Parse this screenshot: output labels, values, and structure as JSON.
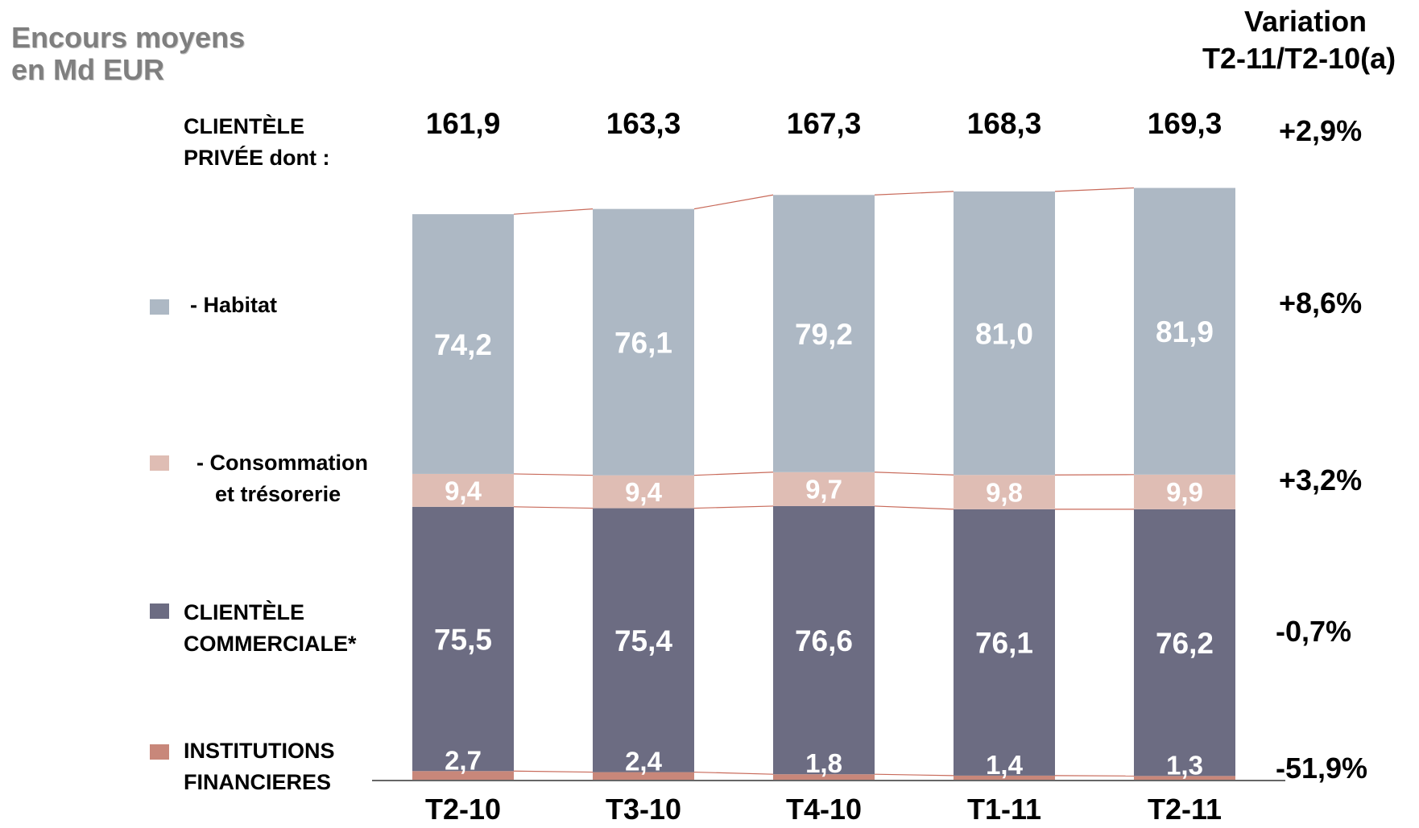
{
  "title": {
    "line1": "Encours moyens",
    "line2": "en Md EUR"
  },
  "variation_header": {
    "line1": "Variation",
    "line2": "T2-11/T2-10(a)"
  },
  "legend": [
    {
      "id": "clientele-privee",
      "line1": "CLIENTÈLE",
      "line2": "PRIVÉE dont :",
      "color": null,
      "variation": "+2,9%"
    },
    {
      "id": "habitat",
      "line1": "- Habitat",
      "line2": "",
      "color": "#adb8c4",
      "variation": "+8,6%"
    },
    {
      "id": "consommation",
      "line1": "- Consommation",
      "line2": "et trésorerie",
      "color": "#dfbdb4",
      "variation": "+3,2%"
    },
    {
      "id": "clientele-commerciale",
      "line1": "CLIENTÈLE",
      "line2": "COMMERCIALE*",
      "color": "#6c6c82",
      "variation": "-0,7%"
    },
    {
      "id": "institutions",
      "line1": "INSTITUTIONS",
      "line2": "FINANCIERES",
      "color": "#c8877a",
      "variation": "-51,9%"
    }
  ],
  "chart_data": {
    "type": "bar",
    "stacked": true,
    "categories": [
      "T2-10",
      "T3-10",
      "T4-10",
      "T1-11",
      "T2-11"
    ],
    "series": [
      {
        "name": "INSTITUTIONS FINANCIERES",
        "values": [
          2.7,
          2.4,
          1.8,
          1.4,
          1.3
        ],
        "labels": [
          "2,7",
          "2,4",
          "1,8",
          "1,4",
          "1,3"
        ],
        "color": "#c8877a"
      },
      {
        "name": "CLIENTÈLE COMMERCIALE*",
        "values": [
          75.5,
          75.4,
          76.6,
          76.1,
          76.2
        ],
        "labels": [
          "75,5",
          "75,4",
          "76,6",
          "76,1",
          "76,2"
        ],
        "color": "#6c6c82"
      },
      {
        "name": "- Consommation et trésorerie",
        "values": [
          9.4,
          9.4,
          9.7,
          9.8,
          9.9
        ],
        "labels": [
          "9,4",
          "9,4",
          "9,7",
          "9,8",
          "9,9"
        ],
        "color": "#dfbdb4"
      },
      {
        "name": "- Habitat",
        "values": [
          74.2,
          76.1,
          79.2,
          81.0,
          81.9
        ],
        "labels": [
          "74,2",
          "76,1",
          "79,2",
          "81,0",
          "81,9"
        ],
        "color": "#adb8c4"
      }
    ],
    "totals": {
      "name": "CLIENTÈLE PRIVÉE dont :",
      "values": [
        161.9,
        163.3,
        167.3,
        168.3,
        169.3
      ],
      "labels": [
        "161,9",
        "163,3",
        "167,3",
        "168,3",
        "169,3"
      ]
    },
    "connector_color": "#c86a5a",
    "ylim": [
      0,
      170
    ],
    "grid": false,
    "legend_position": "left"
  }
}
